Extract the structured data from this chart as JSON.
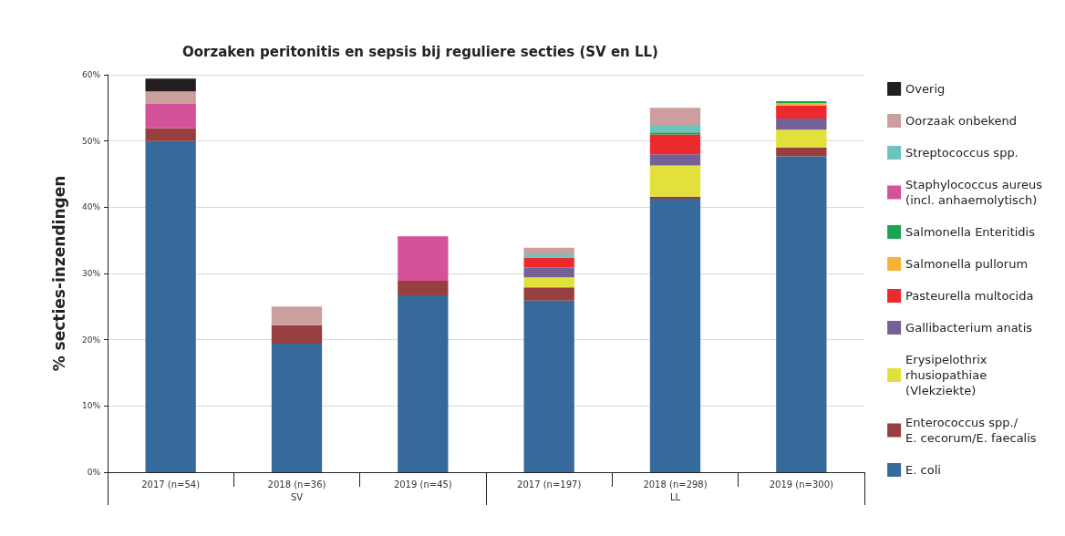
{
  "chart_data": {
    "type": "bar",
    "stacked": true,
    "title": "Oorzaken peritonitis en sepsis bij reguliere secties (SV en LL)",
    "ylabel": "% secties-inzendingen",
    "categories": [
      "2017 (n=54)",
      "2018 (n=36)",
      "2019 (n=45)",
      "2017 (n=197)",
      "2018 (n=298)",
      "2019 (n=300)"
    ],
    "annotations": [
      "SV",
      "LL"
    ],
    "ylim": [
      0,
      60
    ],
    "yticks": [
      {
        "value": 0,
        "label": "0%"
      },
      {
        "value": 10,
        "label": "10%"
      },
      {
        "value": 20,
        "label": "20%"
      },
      {
        "value": 30,
        "label": "30%"
      },
      {
        "value": 40,
        "label": "40%"
      },
      {
        "value": 50,
        "label": "50%"
      },
      {
        "value": 60,
        "label": "60%"
      }
    ],
    "grid": "y",
    "legend": "right",
    "series": [
      {
        "name": "E. coli",
        "color": "#366a9c",
        "values": [
          50,
          19.4,
          26.7,
          25.9,
          41.3,
          47.7
        ]
      },
      {
        "name": "Enterococcus spp./\nE. cecorum/E. faecalis",
        "color": "#973f3e",
        "values": [
          1.9,
          2.8,
          2.2,
          2.0,
          0.3,
          1.3
        ]
      },
      {
        "name": "Erysipelothrix\nrhusiopathiae\n(Vlekziekte)",
        "color": "#e2e03a",
        "values": [
          null,
          null,
          null,
          1.5,
          4.7,
          2.7
        ]
      },
      {
        "name": "Gallibacterium anatis",
        "color": "#736198",
        "values": [
          null,
          null,
          null,
          1.5,
          1.7,
          1.7
        ]
      },
      {
        "name": "Pasteurella multocida",
        "color": "#ec2a2e",
        "values": [
          null,
          null,
          null,
          1.5,
          3.0,
          2.0
        ]
      },
      {
        "name": "Salmonella pullorum",
        "color": "#f9b233",
        "values": [
          null,
          null,
          null,
          null,
          null,
          0.3
        ]
      },
      {
        "name": "Salmonella Enteritidis",
        "color": "#1aa552",
        "values": [
          null,
          null,
          null,
          null,
          0.3,
          0.3
        ]
      },
      {
        "name": "Staphylococcus aureus\n(incl. anhaemolytisch)",
        "color": "#d4529a",
        "values": [
          3.7,
          null,
          6.7,
          null,
          null,
          null
        ]
      },
      {
        "name": "Streptococcus spp.",
        "color": "#6cc3bd",
        "values": [
          null,
          null,
          null,
          0.5,
          1.0,
          null
        ]
      },
      {
        "name": "Oorzaak onbekend",
        "color": "#cd9e9e",
        "values": [
          1.9,
          2.8,
          null,
          1.0,
          2.7,
          null
        ]
      },
      {
        "name": "Overig",
        "color": "#231f20",
        "values": [
          1.9,
          null,
          null,
          null,
          null,
          null
        ]
      }
    ]
  }
}
